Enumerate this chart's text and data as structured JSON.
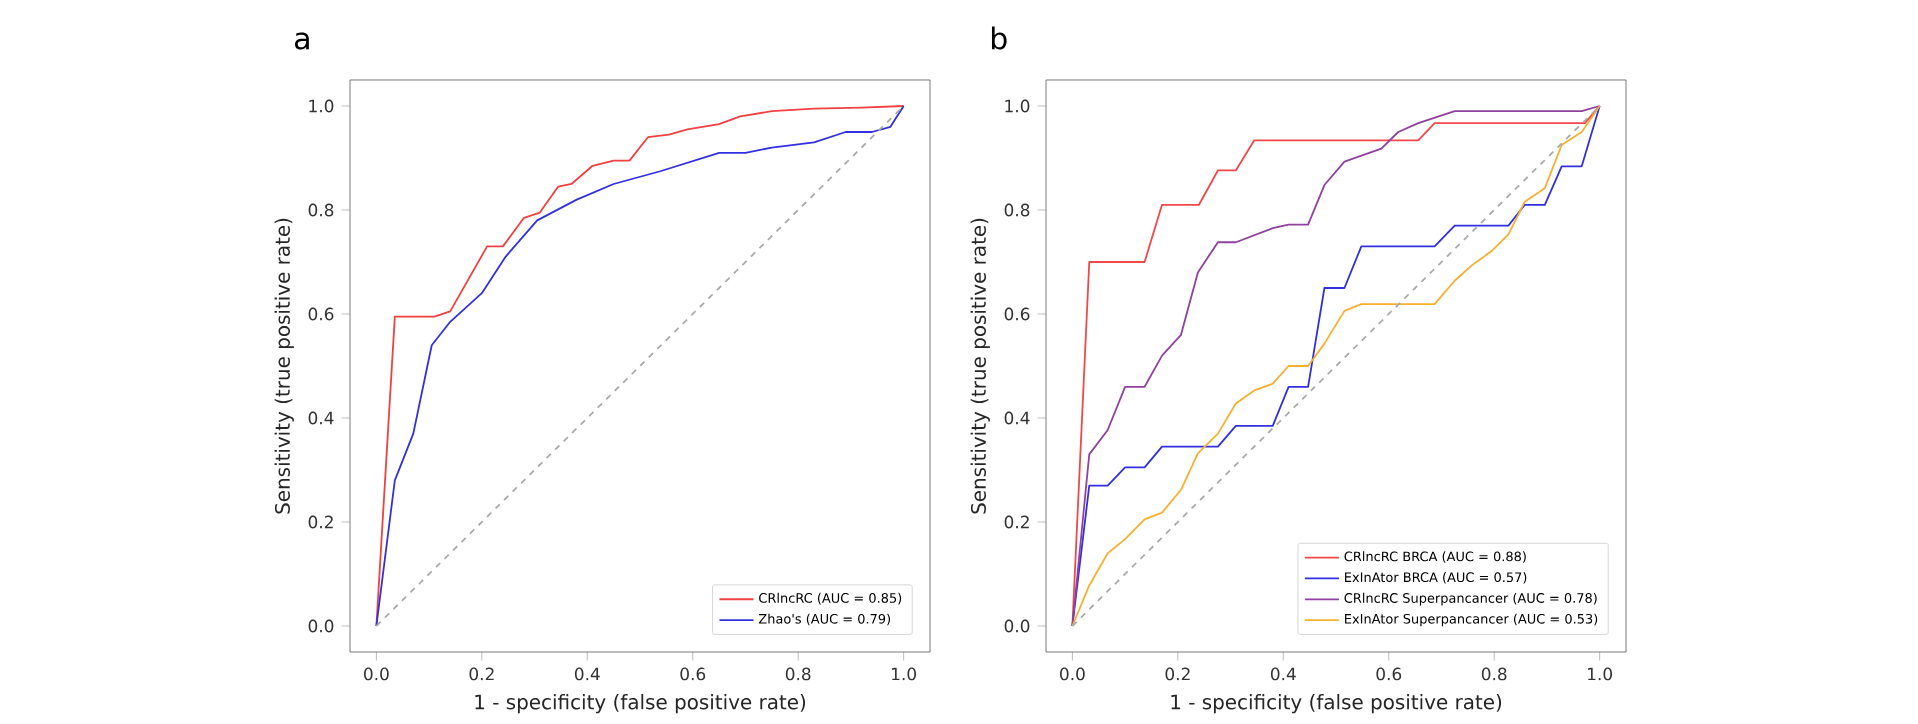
{
  "chart_data": [
    {
      "type": "line",
      "title": "a",
      "xlabel": "1 - specificity (false positive rate)",
      "ylabel": "Sensitivity (true positive rate)",
      "xlim": [
        -0.05,
        1.05
      ],
      "ylim": [
        -0.05,
        1.05
      ],
      "xticks": [
        {
          "value": 0,
          "label": "0.0"
        },
        {
          "value": 0.2,
          "label": "0.2"
        },
        {
          "value": 0.4,
          "label": "0.4"
        },
        {
          "value": 0.6,
          "label": "0.6"
        },
        {
          "value": 0.8,
          "label": "0.8"
        },
        {
          "value": 1,
          "label": "1.0"
        }
      ],
      "yticks": [
        {
          "value": 0,
          "label": "0.0"
        },
        {
          "value": 0.2,
          "label": "0.2"
        },
        {
          "value": 0.4,
          "label": "0.4"
        },
        {
          "value": 0.6,
          "label": "0.6"
        },
        {
          "value": 0.8,
          "label": "0.8"
        },
        {
          "value": 1,
          "label": "1.0"
        }
      ],
      "legend": "bottom right",
      "grid": false,
      "series": [
        {
          "name": "CRlncRC (AUC = 0.85)",
          "color": "#f04040",
          "x": [
            0,
            0.035,
            0.11,
            0.14,
            0.21,
            0.24,
            0.28,
            0.31,
            0.345,
            0.37,
            0.41,
            0.45,
            0.48,
            0.515,
            0.555,
            0.59,
            0.65,
            0.69,
            0.75,
            0.83,
            0.92,
            1
          ],
          "values": [
            0,
            0.595,
            0.595,
            0.605,
            0.73,
            0.73,
            0.785,
            0.795,
            0.845,
            0.85,
            0.885,
            0.895,
            0.895,
            0.94,
            0.945,
            0.955,
            0.965,
            0.98,
            0.99,
            0.995,
            0.997,
            1
          ]
        },
        {
          "name": "Zhao's (AUC = 0.79)",
          "color": "#3030e0",
          "x": [
            0,
            0.035,
            0.07,
            0.105,
            0.14,
            0.2,
            0.245,
            0.305,
            0.38,
            0.45,
            0.54,
            0.65,
            0.7,
            0.75,
            0.83,
            0.89,
            0.94,
            0.975,
            1
          ],
          "values": [
            0,
            0.28,
            0.37,
            0.54,
            0.585,
            0.64,
            0.71,
            0.78,
            0.82,
            0.85,
            0.875,
            0.91,
            0.91,
            0.92,
            0.93,
            0.95,
            0.95,
            0.96,
            1
          ]
        },
        {
          "color": "#aaaaaa",
          "line_style": "dashed",
          "x": [
            0,
            1
          ],
          "values": [
            0,
            1
          ]
        }
      ]
    },
    {
      "type": "line",
      "title": "b",
      "xlabel": "1 - specificity (false positive rate)",
      "ylabel": "Sensitivity (true positive rate)",
      "xlim": [
        -0.05,
        1.05
      ],
      "ylim": [
        -0.05,
        1.05
      ],
      "xticks": [
        {
          "value": 0,
          "label": "0.0"
        },
        {
          "value": 0.2,
          "label": "0.2"
        },
        {
          "value": 0.4,
          "label": "0.4"
        },
        {
          "value": 0.6,
          "label": "0.6"
        },
        {
          "value": 0.8,
          "label": "0.8"
        },
        {
          "value": 1,
          "label": "1.0"
        }
      ],
      "yticks": [
        {
          "value": 0,
          "label": "0.0"
        },
        {
          "value": 0.2,
          "label": "0.2"
        },
        {
          "value": 0.4,
          "label": "0.4"
        },
        {
          "value": 0.6,
          "label": "0.6"
        },
        {
          "value": 0.8,
          "label": "0.8"
        },
        {
          "value": 1,
          "label": "1.0"
        }
      ],
      "legend": "bottom right",
      "grid": false,
      "series": [
        {
          "name": "CRlncRC BRCA (AUC = 0.88)",
          "color": "#f04848",
          "x": [
            0,
            0.032,
            0.137,
            0.17,
            0.24,
            0.276,
            0.31,
            0.345,
            0.656,
            0.687,
            0.972,
            1
          ],
          "values": [
            0,
            0.7,
            0.7,
            0.81,
            0.81,
            0.876,
            0.876,
            0.934,
            0.934,
            0.967,
            0.967,
            1
          ]
        },
        {
          "name": "ExInAtor BRCA (AUC = 0.57)",
          "color": "#3030e0",
          "x": [
            0,
            0.032,
            0.067,
            0.1,
            0.137,
            0.17,
            0.276,
            0.31,
            0.38,
            0.41,
            0.447,
            0.478,
            0.516,
            0.548,
            0.687,
            0.725,
            0.827,
            0.858,
            0.896,
            0.928,
            0.966,
            1
          ],
          "values": [
            0,
            0.27,
            0.27,
            0.305,
            0.305,
            0.345,
            0.345,
            0.385,
            0.385,
            0.46,
            0.46,
            0.65,
            0.65,
            0.73,
            0.73,
            0.77,
            0.77,
            0.81,
            0.81,
            0.884,
            0.884,
            1
          ]
        },
        {
          "name": "CRlncRC Superpancancer (AUC = 0.78)",
          "color": "#9040a0",
          "x": [
            0,
            0.032,
            0.067,
            0.1,
            0.137,
            0.17,
            0.206,
            0.238,
            0.276,
            0.31,
            0.38,
            0.41,
            0.447,
            0.478,
            0.516,
            0.586,
            0.618,
            0.656,
            0.725,
            0.966,
            1
          ],
          "values": [
            0,
            0.33,
            0.377,
            0.46,
            0.46,
            0.52,
            0.56,
            0.68,
            0.738,
            0.738,
            0.765,
            0.772,
            0.772,
            0.848,
            0.893,
            0.918,
            0.95,
            0.967,
            0.99,
            0.99,
            1
          ]
        },
        {
          "name": "ExInAtor Superpancancer (AUC = 0.53)",
          "color": "#f5b030",
          "x": [
            0,
            0.032,
            0.067,
            0.1,
            0.137,
            0.17,
            0.206,
            0.238,
            0.276,
            0.31,
            0.345,
            0.38,
            0.41,
            0.447,
            0.478,
            0.516,
            0.548,
            0.687,
            0.725,
            0.757,
            0.795,
            0.827,
            0.858,
            0.896,
            0.928,
            0.966,
            1
          ],
          "values": [
            0,
            0.078,
            0.14,
            0.167,
            0.205,
            0.218,
            0.262,
            0.332,
            0.37,
            0.428,
            0.453,
            0.466,
            0.5,
            0.5,
            0.543,
            0.606,
            0.619,
            0.619,
            0.664,
            0.693,
            0.721,
            0.753,
            0.816,
            0.842,
            0.925,
            0.95,
            1
          ]
        },
        {
          "color": "#aaaaaa",
          "line_style": "dashed",
          "x": [
            0,
            1
          ],
          "values": [
            0,
            1
          ]
        }
      ]
    }
  ]
}
